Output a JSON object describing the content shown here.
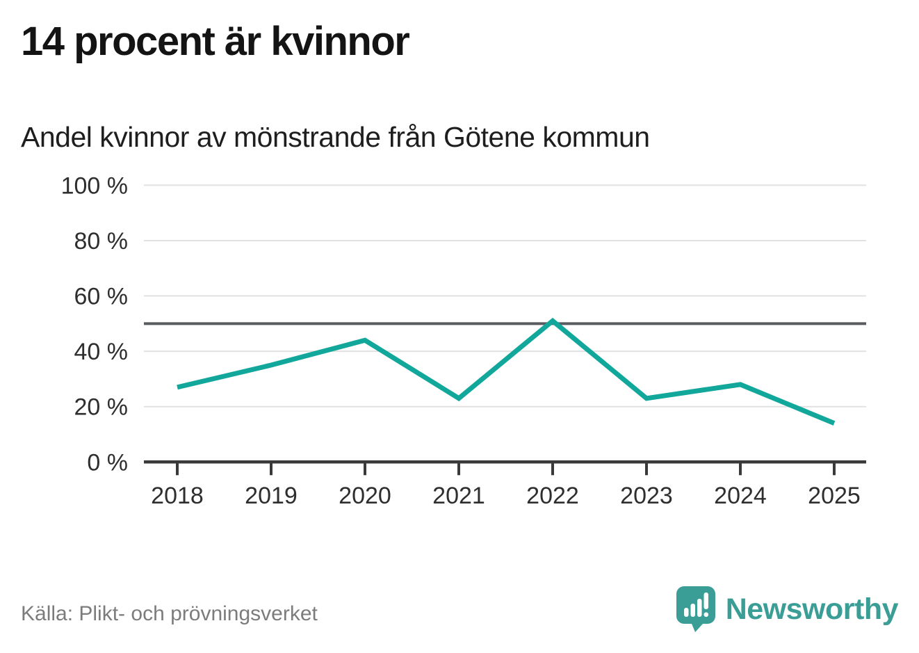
{
  "header": {
    "title": "14 procent är kvinnor",
    "subtitle": "Andel kvinnor av mönstrande från Götene kommun"
  },
  "chart_data": {
    "type": "line",
    "title": "14 procent är kvinnor",
    "subtitle": "Andel kvinnor av mönstrande från Götene kommun",
    "x": [
      "2018",
      "2019",
      "2020",
      "2021",
      "2022",
      "2023",
      "2024",
      "2025"
    ],
    "series": [
      {
        "name": "Andel kvinnor av mönstrande",
        "values": [
          27,
          35,
          44,
          23,
          51,
          23,
          28,
          14
        ],
        "color": "#12a79b"
      }
    ],
    "xlabel": "",
    "ylabel": "",
    "ylim": [
      0,
      100
    ],
    "yticks": [
      0,
      20,
      40,
      60,
      80,
      100
    ],
    "ytick_label_suffix": " %",
    "reference_line_y": 50,
    "grid": true,
    "legend_position": "none",
    "colors": {
      "line": "#12a79b",
      "gridline": "#e1e1e1",
      "reference_line": "#5a5b60",
      "axis": "#3a3a3a",
      "tick_labels": "#2e2e2e",
      "title": "#141414",
      "source": "#7c7c7c",
      "brand_teal": "#3a9e97"
    }
  },
  "footer": {
    "source": "Källa: Plikt- och prövningsverket",
    "brand": "Newsworthy",
    "brand_icon": "bar-chart-exclamation-speech-bubble"
  }
}
